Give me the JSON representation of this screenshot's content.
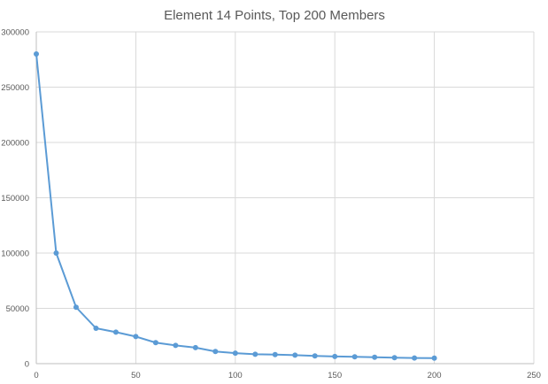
{
  "chart_data": {
    "type": "line",
    "title": "Element 14 Points, Top 200 Members",
    "xlabel": "",
    "ylabel": "",
    "xlim": [
      0,
      250
    ],
    "ylim": [
      0,
      300000
    ],
    "x_ticks": [
      0,
      50,
      100,
      150,
      200,
      250
    ],
    "y_ticks": [
      0,
      50000,
      100000,
      150000,
      200000,
      250000,
      300000
    ],
    "grid": true,
    "legend": "none",
    "series": [
      {
        "color": "#5b9bd5",
        "x": [
          0,
          10,
          20,
          30,
          40,
          50,
          60,
          70,
          80,
          90,
          100,
          110,
          120,
          130,
          140,
          150,
          160,
          170,
          180,
          190,
          200
        ],
        "y": [
          280000,
          100000,
          51000,
          32000,
          28500,
          24500,
          19000,
          16500,
          14500,
          11000,
          9500,
          8500,
          8200,
          7700,
          7000,
          6500,
          6200,
          5800,
          5400,
          5100,
          5000
        ]
      }
    ]
  }
}
